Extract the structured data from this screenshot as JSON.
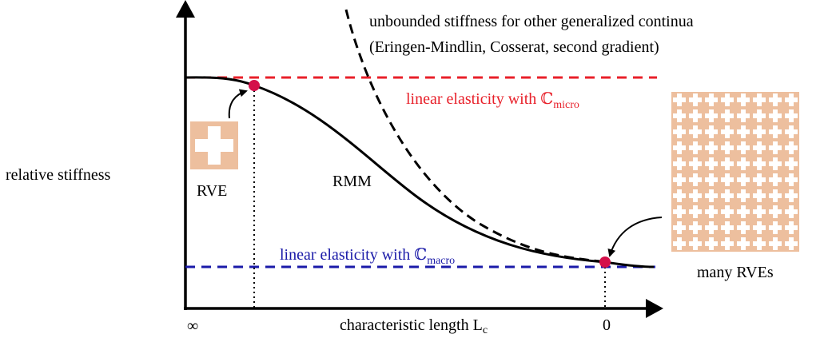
{
  "annotations": {
    "unbounded_line1": "unbounded stiffness for other generalized continua",
    "unbounded_line2": "(Eringen-Mindlin, Cosserat, second gradient)",
    "micro": {
      "text": "linear elasticity with ℂ",
      "subscript": "micro"
    },
    "macro": {
      "text": "linear elasticity with ℂ",
      "subscript": "macro"
    },
    "rvm": "RMM",
    "rve": "RVE",
    "many_rves": "many RVEs"
  },
  "axes": {
    "y_label": "relative stiffness",
    "x_label": {
      "text": "characteristic length L",
      "subscript": "c"
    },
    "x_left": "∞",
    "x_right": "0"
  }
}
